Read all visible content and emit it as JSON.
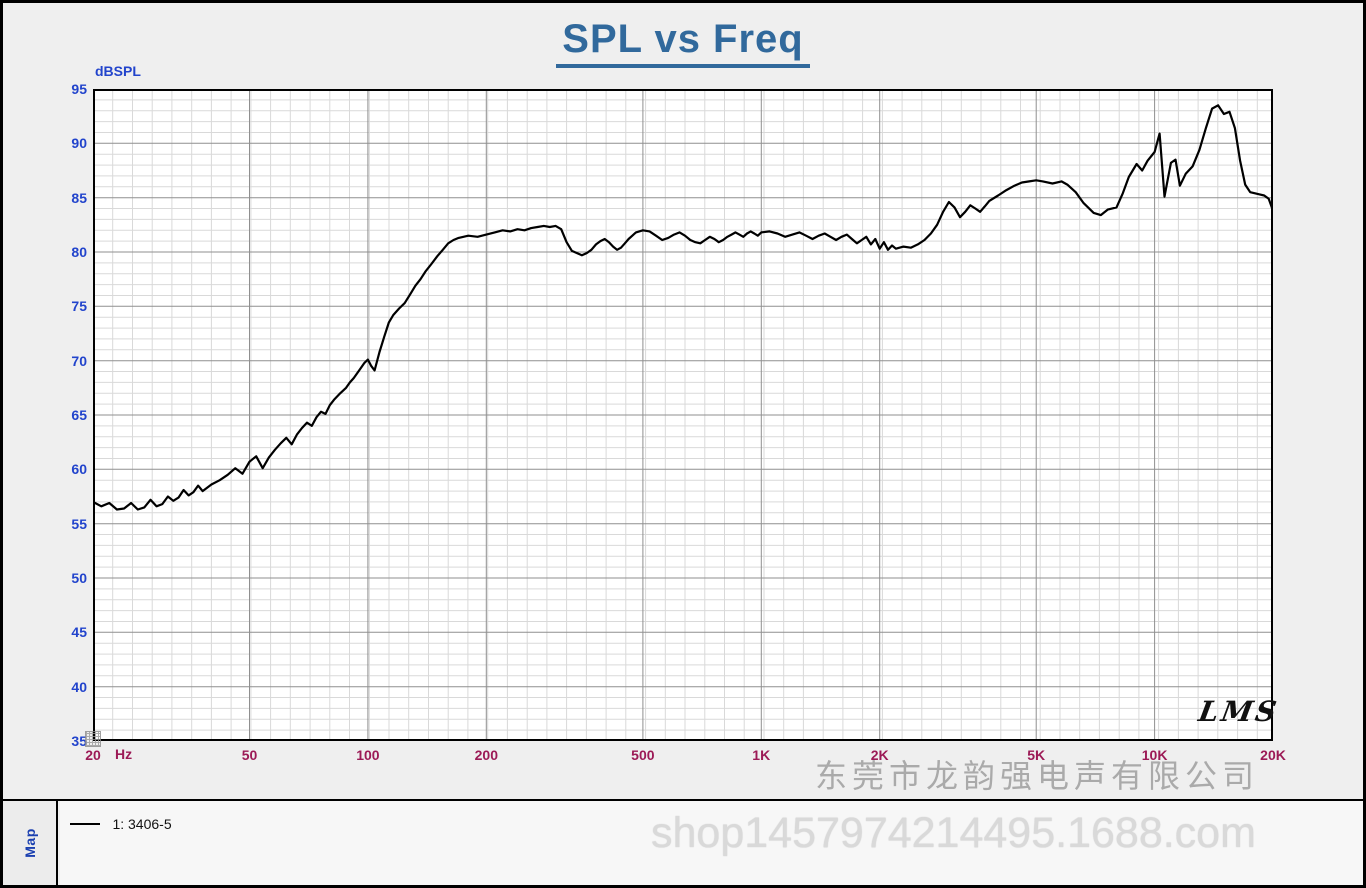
{
  "title": "SPL vs Freq",
  "logo": "LMS",
  "y_axis": {
    "label": "dBSPL",
    "ticks": [
      95,
      90,
      85,
      80,
      75,
      70,
      65,
      60,
      55,
      50,
      45,
      40,
      35
    ]
  },
  "x_axis": {
    "unit": "Hz",
    "ticks": [
      {
        "f": 20,
        "label": "20"
      },
      {
        "f": 50,
        "label": "50"
      },
      {
        "f": 100,
        "label": "100"
      },
      {
        "f": 200,
        "label": "200"
      },
      {
        "f": 500,
        "label": "500"
      },
      {
        "f": 1000,
        "label": "1K"
      },
      {
        "f": 2000,
        "label": "2K"
      },
      {
        "f": 5000,
        "label": "5K"
      },
      {
        "f": 10000,
        "label": "10K"
      },
      {
        "f": 20000,
        "label": "20K"
      }
    ]
  },
  "legend": {
    "map_label": "Map",
    "series_label": "1: 3406-5"
  },
  "watermark": {
    "company": "东莞市龙韵强电声有限公司",
    "shop": "shop1457974214495.1688.com"
  },
  "colors": {
    "curve": "#000000",
    "title": "#31699c",
    "y_tick": "#2244cc",
    "x_tick": "#9c1a56",
    "grid_minor": "#d9d9d9",
    "grid_major": "#8f8f8f",
    "plot_border": "#000000"
  },
  "chart_data": {
    "type": "line",
    "title": "SPL vs Freq",
    "xlabel": "Hz",
    "ylabel": "dBSPL",
    "x_scale": "log",
    "xlim": [
      20,
      20000
    ],
    "ylim": [
      35,
      95
    ],
    "y_major_step": 5,
    "y_minor_step": 1,
    "x_major_gridlines": [
      50,
      100,
      200,
      500,
      1000,
      2000,
      5000,
      10000
    ],
    "legend_position": "bottom-left",
    "series": [
      {
        "name": "1: 3406-5",
        "color": "#000000",
        "points": [
          [
            20,
            57.0
          ],
          [
            21,
            56.6
          ],
          [
            22,
            56.9
          ],
          [
            23,
            56.3
          ],
          [
            24,
            56.4
          ],
          [
            25,
            56.9
          ],
          [
            26,
            56.3
          ],
          [
            27,
            56.5
          ],
          [
            28,
            57.2
          ],
          [
            29,
            56.6
          ],
          [
            30,
            56.8
          ],
          [
            31,
            57.5
          ],
          [
            32,
            57.1
          ],
          [
            33,
            57.4
          ],
          [
            34,
            58.1
          ],
          [
            35,
            57.6
          ],
          [
            36,
            57.9
          ],
          [
            37,
            58.5
          ],
          [
            38,
            58.0
          ],
          [
            39,
            58.3
          ],
          [
            40,
            58.6
          ],
          [
            42,
            59.0
          ],
          [
            44,
            59.5
          ],
          [
            46,
            60.1
          ],
          [
            48,
            59.6
          ],
          [
            50,
            60.7
          ],
          [
            52,
            61.2
          ],
          [
            54,
            60.1
          ],
          [
            56,
            61.1
          ],
          [
            58,
            61.8
          ],
          [
            60,
            62.4
          ],
          [
            62,
            62.9
          ],
          [
            64,
            62.3
          ],
          [
            66,
            63.2
          ],
          [
            68,
            63.8
          ],
          [
            70,
            64.3
          ],
          [
            72,
            64.0
          ],
          [
            74,
            64.8
          ],
          [
            76,
            65.3
          ],
          [
            78,
            65.1
          ],
          [
            80,
            65.9
          ],
          [
            82,
            66.4
          ],
          [
            85,
            67.0
          ],
          [
            88,
            67.5
          ],
          [
            90,
            68.0
          ],
          [
            92,
            68.4
          ],
          [
            95,
            69.1
          ],
          [
            98,
            69.8
          ],
          [
            100,
            70.1
          ],
          [
            102,
            69.5
          ],
          [
            104,
            69.1
          ],
          [
            107,
            70.8
          ],
          [
            110,
            72.2
          ],
          [
            113,
            73.5
          ],
          [
            116,
            74.2
          ],
          [
            120,
            74.8
          ],
          [
            124,
            75.3
          ],
          [
            128,
            76.1
          ],
          [
            132,
            76.9
          ],
          [
            136,
            77.5
          ],
          [
            140,
            78.2
          ],
          [
            145,
            78.9
          ],
          [
            150,
            79.6
          ],
          [
            155,
            80.2
          ],
          [
            160,
            80.8
          ],
          [
            165,
            81.1
          ],
          [
            170,
            81.3
          ],
          [
            180,
            81.5
          ],
          [
            190,
            81.4
          ],
          [
            200,
            81.6
          ],
          [
            210,
            81.8
          ],
          [
            220,
            82.0
          ],
          [
            230,
            81.9
          ],
          [
            240,
            82.1
          ],
          [
            250,
            82.0
          ],
          [
            260,
            82.2
          ],
          [
            270,
            82.3
          ],
          [
            280,
            82.4
          ],
          [
            290,
            82.3
          ],
          [
            300,
            82.4
          ],
          [
            310,
            82.1
          ],
          [
            320,
            80.9
          ],
          [
            330,
            80.1
          ],
          [
            340,
            79.9
          ],
          [
            350,
            79.7
          ],
          [
            360,
            79.9
          ],
          [
            370,
            80.2
          ],
          [
            380,
            80.7
          ],
          [
            390,
            81.0
          ],
          [
            400,
            81.2
          ],
          [
            410,
            80.9
          ],
          [
            420,
            80.5
          ],
          [
            430,
            80.2
          ],
          [
            440,
            80.4
          ],
          [
            450,
            80.8
          ],
          [
            460,
            81.2
          ],
          [
            470,
            81.5
          ],
          [
            480,
            81.8
          ],
          [
            500,
            82.0
          ],
          [
            520,
            81.9
          ],
          [
            540,
            81.5
          ],
          [
            560,
            81.1
          ],
          [
            580,
            81.3
          ],
          [
            600,
            81.6
          ],
          [
            620,
            81.8
          ],
          [
            640,
            81.5
          ],
          [
            660,
            81.1
          ],
          [
            680,
            80.9
          ],
          [
            700,
            80.8
          ],
          [
            720,
            81.1
          ],
          [
            740,
            81.4
          ],
          [
            760,
            81.2
          ],
          [
            780,
            80.9
          ],
          [
            800,
            81.1
          ],
          [
            820,
            81.4
          ],
          [
            840,
            81.6
          ],
          [
            860,
            81.8
          ],
          [
            880,
            81.6
          ],
          [
            900,
            81.4
          ],
          [
            920,
            81.7
          ],
          [
            940,
            81.9
          ],
          [
            960,
            81.7
          ],
          [
            980,
            81.5
          ],
          [
            1000,
            81.8
          ],
          [
            1050,
            81.9
          ],
          [
            1100,
            81.7
          ],
          [
            1150,
            81.4
          ],
          [
            1200,
            81.6
          ],
          [
            1250,
            81.8
          ],
          [
            1300,
            81.5
          ],
          [
            1350,
            81.2
          ],
          [
            1400,
            81.5
          ],
          [
            1450,
            81.7
          ],
          [
            1500,
            81.4
          ],
          [
            1550,
            81.1
          ],
          [
            1600,
            81.4
          ],
          [
            1650,
            81.6
          ],
          [
            1700,
            81.2
          ],
          [
            1750,
            80.8
          ],
          [
            1800,
            81.1
          ],
          [
            1850,
            81.4
          ],
          [
            1900,
            80.7
          ],
          [
            1950,
            81.2
          ],
          [
            2000,
            80.3
          ],
          [
            2050,
            80.9
          ],
          [
            2100,
            80.2
          ],
          [
            2150,
            80.6
          ],
          [
            2200,
            80.3
          ],
          [
            2300,
            80.5
          ],
          [
            2400,
            80.4
          ],
          [
            2500,
            80.7
          ],
          [
            2600,
            81.1
          ],
          [
            2700,
            81.7
          ],
          [
            2800,
            82.5
          ],
          [
            2900,
            83.7
          ],
          [
            3000,
            84.6
          ],
          [
            3100,
            84.1
          ],
          [
            3200,
            83.2
          ],
          [
            3300,
            83.7
          ],
          [
            3400,
            84.3
          ],
          [
            3500,
            84.0
          ],
          [
            3600,
            83.7
          ],
          [
            3700,
            84.2
          ],
          [
            3800,
            84.7
          ],
          [
            4000,
            85.2
          ],
          [
            4200,
            85.7
          ],
          [
            4400,
            86.1
          ],
          [
            4600,
            86.4
          ],
          [
            4800,
            86.5
          ],
          [
            5000,
            86.6
          ],
          [
            5200,
            86.5
          ],
          [
            5500,
            86.3
          ],
          [
            5800,
            86.5
          ],
          [
            6000,
            86.2
          ],
          [
            6300,
            85.5
          ],
          [
            6600,
            84.5
          ],
          [
            7000,
            83.6
          ],
          [
            7300,
            83.4
          ],
          [
            7600,
            83.9
          ],
          [
            8000,
            84.1
          ],
          [
            8300,
            85.4
          ],
          [
            8600,
            86.9
          ],
          [
            9000,
            88.1
          ],
          [
            9300,
            87.5
          ],
          [
            9600,
            88.4
          ],
          [
            10000,
            89.2
          ],
          [
            10300,
            90.9
          ],
          [
            10600,
            85.1
          ],
          [
            11000,
            88.2
          ],
          [
            11300,
            88.5
          ],
          [
            11600,
            86.1
          ],
          [
            12000,
            87.2
          ],
          [
            12500,
            87.9
          ],
          [
            13000,
            89.4
          ],
          [
            13500,
            91.4
          ],
          [
            14000,
            93.2
          ],
          [
            14500,
            93.5
          ],
          [
            15000,
            92.7
          ],
          [
            15500,
            92.9
          ],
          [
            16000,
            91.4
          ],
          [
            16500,
            88.4
          ],
          [
            17000,
            86.2
          ],
          [
            17500,
            85.5
          ],
          [
            18000,
            85.4
          ],
          [
            18500,
            85.3
          ],
          [
            19000,
            85.2
          ],
          [
            19500,
            84.9
          ],
          [
            20000,
            83.8
          ]
        ]
      }
    ]
  }
}
